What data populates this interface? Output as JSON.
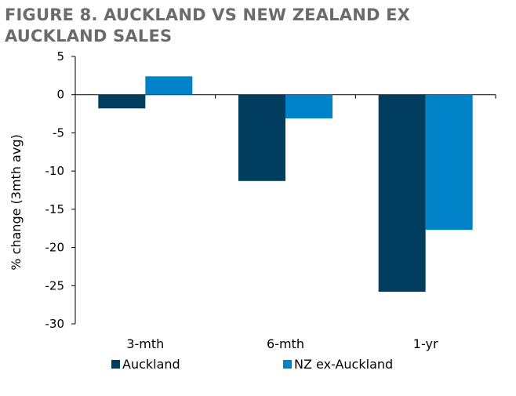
{
  "chart_data": {
    "type": "bar",
    "title": "FIGURE 8. AUCKLAND VS NEW ZEALAND EX AUCKLAND SALES",
    "xlabel": "",
    "ylabel": "% change (3mth avg)",
    "categories": [
      "3-mth",
      "6-mth",
      "1-yr"
    ],
    "series": [
      {
        "name": "Auckland",
        "values": [
          -1.8,
          -11.3,
          -25.8
        ],
        "color": "#003d5e"
      },
      {
        "name": "NZ ex-Auckland",
        "values": [
          2.4,
          -3.1,
          -17.7
        ],
        "color": "#0082c8"
      }
    ],
    "ylim": [
      -30,
      5
    ],
    "yticks": [
      "5",
      "0",
      "-5",
      "-10",
      "-15",
      "-20",
      "-25",
      "-30"
    ],
    "grid": false,
    "legend_position": "bottom-left"
  }
}
